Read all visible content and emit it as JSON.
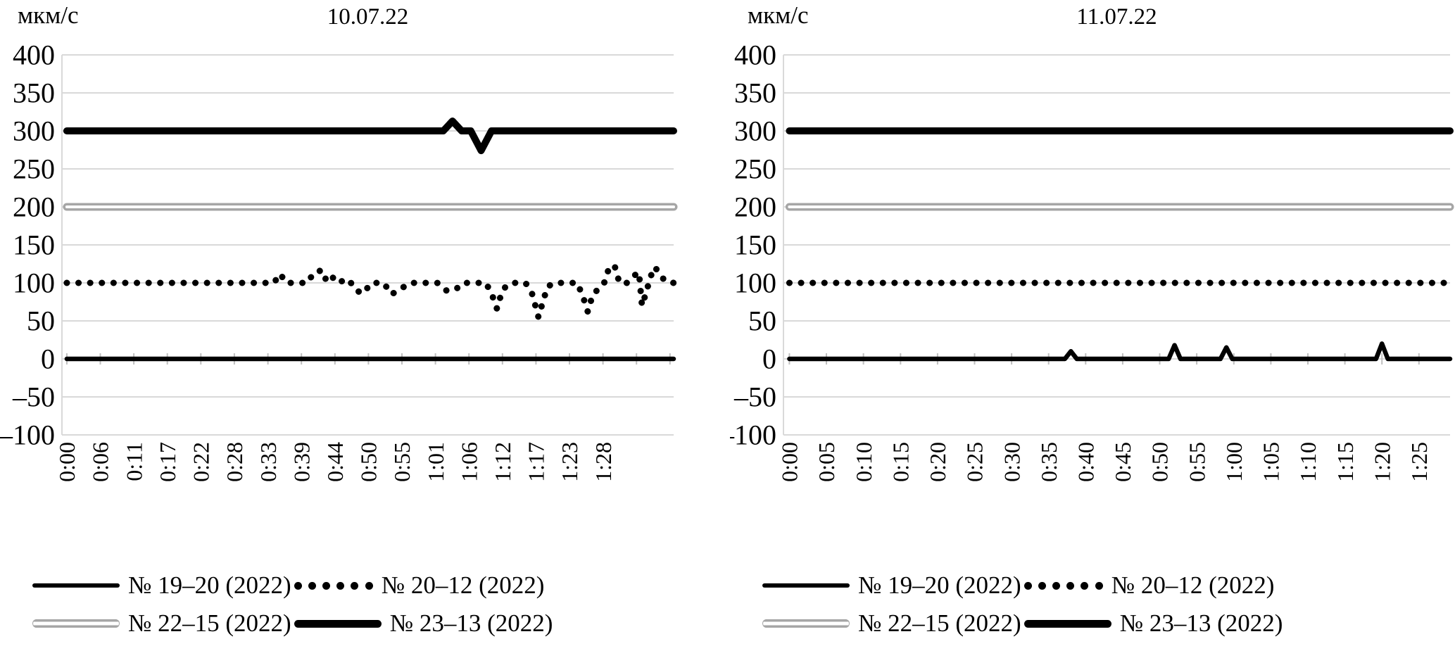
{
  "page": {
    "background": "#ffffff"
  },
  "colors": {
    "gridline": "#d9d9d9",
    "axis_spine": "#d9d9d9",
    "axis_tick": "#bfbfbf",
    "series_black": "#000000",
    "series_gray": "#a6a6a6",
    "text": "#000000"
  },
  "chart_data": [
    {
      "type": "line",
      "title": "10.07.22",
      "unit_label": "мкм/с",
      "grid": true,
      "legend_position": "bottom",
      "ylim": [
        -100,
        400
      ],
      "ytick_step": 50,
      "ytick_labels": [
        "400",
        "350",
        "300",
        "250",
        "200",
        "150",
        "100",
        "50",
        "0",
        "–50",
        "–100"
      ],
      "xlim": [
        -0.8,
        99.6
      ],
      "x_ticks": [
        {
          "label": "0:00",
          "t": 0
        },
        {
          "label": "0:06",
          "t": 5.5
        },
        {
          "label": "0:11",
          "t": 11
        },
        {
          "label": "0:17",
          "t": 16.5
        },
        {
          "label": "0:22",
          "t": 22
        },
        {
          "label": "0:28",
          "t": 27.5
        },
        {
          "label": "0:33",
          "t": 33
        },
        {
          "label": "0:39",
          "t": 38.5
        },
        {
          "label": "0:44",
          "t": 44
        },
        {
          "label": "0:50",
          "t": 49.5
        },
        {
          "label": "0:55",
          "t": 55
        },
        {
          "label": "1:01",
          "t": 60.5
        },
        {
          "label": "1:06",
          "t": 66
        },
        {
          "label": "1:12",
          "t": 71.5
        },
        {
          "label": "1:17",
          "t": 77
        },
        {
          "label": "1:23",
          "t": 82.5
        },
        {
          "label": "1:28",
          "t": 88
        }
      ],
      "extra_axis_ticks": [
        93.5,
        99
      ],
      "series": [
        {
          "name": "№ 19–20 (2022)",
          "style": "solid",
          "color": "#000000",
          "width": 6.5,
          "points": [
            [
              0,
              0
            ],
            [
              99.6,
              0
            ]
          ]
        },
        {
          "name": "№ 20–12 (2022)",
          "style": "dotted",
          "color": "#000000",
          "width": 9,
          "dot_gap": 16.5,
          "points": [
            [
              0,
              100
            ],
            [
              34,
              100
            ],
            [
              35,
              112
            ],
            [
              36,
              100
            ],
            [
              39.5,
              100
            ],
            [
              40.5,
              113
            ],
            [
              41.5,
              116
            ],
            [
              42.3,
              104
            ],
            [
              43.2,
              112
            ],
            [
              44.3,
              100
            ],
            [
              46.2,
              105
            ],
            [
              47.5,
              90
            ],
            [
              48.6,
              86
            ],
            [
              50,
              100
            ],
            [
              52,
              100
            ],
            [
              53.3,
              85
            ],
            [
              54.8,
              92
            ],
            [
              56.3,
              100
            ],
            [
              60.8,
              100
            ],
            [
              62.3,
              90
            ],
            [
              63.8,
              91
            ],
            [
              65,
              100
            ],
            [
              68.8,
              100
            ],
            [
              69.8,
              84
            ],
            [
              70.6,
              66
            ],
            [
              71.4,
              88
            ],
            [
              72.2,
              97
            ],
            [
              73.3,
              100
            ],
            [
              75.3,
              100
            ],
            [
              76.4,
              85
            ],
            [
              77.4,
              55
            ],
            [
              78.1,
              74
            ],
            [
              78.9,
              95
            ],
            [
              80,
              100
            ],
            [
              83.8,
              100
            ],
            [
              84.8,
              80
            ],
            [
              85.5,
              62
            ],
            [
              86.3,
              84
            ],
            [
              87,
              90
            ],
            [
              88.2,
              100
            ],
            [
              89,
              120
            ],
            [
              89.9,
              123
            ],
            [
              90.7,
              100
            ],
            [
              91.9,
              100
            ],
            [
              93.2,
              110
            ],
            [
              93.9,
              114
            ],
            [
              94.4,
              70
            ],
            [
              95,
              85
            ],
            [
              95.8,
              108
            ],
            [
              96.5,
              121
            ],
            [
              97.3,
              112
            ],
            [
              98.2,
              102
            ],
            [
              99.6,
              100
            ]
          ]
        },
        {
          "name": "№ 22–15 (2022)",
          "style": "double",
          "color": "#a6a6a6",
          "inner_color": "#ffffff",
          "width": 11,
          "inner_width": 4,
          "points": [
            [
              0,
              200
            ],
            [
              99.6,
              200
            ]
          ]
        },
        {
          "name": "№ 23–13 (2022)",
          "style": "solid",
          "color": "#000000",
          "width": 10,
          "points": [
            [
              0,
              300
            ],
            [
              61.8,
              300
            ],
            [
              63.3,
              313
            ],
            [
              64.8,
              300
            ],
            [
              66.3,
              300
            ],
            [
              68,
              274
            ],
            [
              69.7,
              300
            ],
            [
              99.6,
              300
            ]
          ]
        }
      ]
    },
    {
      "type": "line",
      "title": "11.07.22",
      "unit_label": "мкм/с",
      "grid": true,
      "legend_position": "bottom",
      "ylim": [
        -100,
        400
      ],
      "ytick_step": 50,
      "ytick_labels": [
        "400",
        "350",
        "300",
        "250",
        "200",
        "150",
        "100",
        "50",
        "0",
        "–50",
        "–100"
      ],
      "xlim": [
        -0.8,
        89.2
      ],
      "x_ticks": [
        {
          "label": "0:00",
          "t": 0
        },
        {
          "label": "0:05",
          "t": 5
        },
        {
          "label": "0:10",
          "t": 10
        },
        {
          "label": "0:15",
          "t": 15
        },
        {
          "label": "0:20",
          "t": 20
        },
        {
          "label": "0:25",
          "t": 25
        },
        {
          "label": "0:30",
          "t": 30
        },
        {
          "label": "0:35",
          "t": 35
        },
        {
          "label": "0:40",
          "t": 40
        },
        {
          "label": "0:45",
          "t": 45
        },
        {
          "label": "0:50",
          "t": 50
        },
        {
          "label": "0:55",
          "t": 55
        },
        {
          "label": "1:00",
          "t": 60
        },
        {
          "label": "1:05",
          "t": 65
        },
        {
          "label": "1:10",
          "t": 70
        },
        {
          "label": "1:15",
          "t": 75
        },
        {
          "label": "1:20",
          "t": 80
        },
        {
          "label": "1:25",
          "t": 85
        }
      ],
      "extra_axis_ticks": [],
      "series": [
        {
          "name": "№ 19–20 (2022)",
          "style": "solid",
          "color": "#000000",
          "width": 6.5,
          "points": [
            [
              0,
              0
            ],
            [
              37.2,
              0
            ],
            [
              38,
              10
            ],
            [
              38.8,
              0
            ],
            [
              51.2,
              0
            ],
            [
              52,
              18
            ],
            [
              52.8,
              0
            ],
            [
              58.2,
              0
            ],
            [
              59,
              15
            ],
            [
              59.8,
              0
            ],
            [
              79.2,
              0
            ],
            [
              80,
              20
            ],
            [
              80.8,
              0
            ],
            [
              89.2,
              0
            ]
          ]
        },
        {
          "name": "№ 20–12 (2022)",
          "style": "dotted",
          "color": "#000000",
          "width": 9,
          "dot_gap": 16.5,
          "points": [
            [
              0,
              100
            ],
            [
              89.2,
              100
            ]
          ]
        },
        {
          "name": "№ 22–15 (2022)",
          "style": "double",
          "color": "#a6a6a6",
          "inner_color": "#ffffff",
          "width": 11,
          "inner_width": 4,
          "points": [
            [
              0,
              200
            ],
            [
              89.2,
              200
            ]
          ]
        },
        {
          "name": "№ 23–13 (2022)",
          "style": "solid",
          "color": "#000000",
          "width": 10,
          "points": [
            [
              0,
              300
            ],
            [
              89.2,
              300
            ]
          ]
        }
      ]
    }
  ]
}
